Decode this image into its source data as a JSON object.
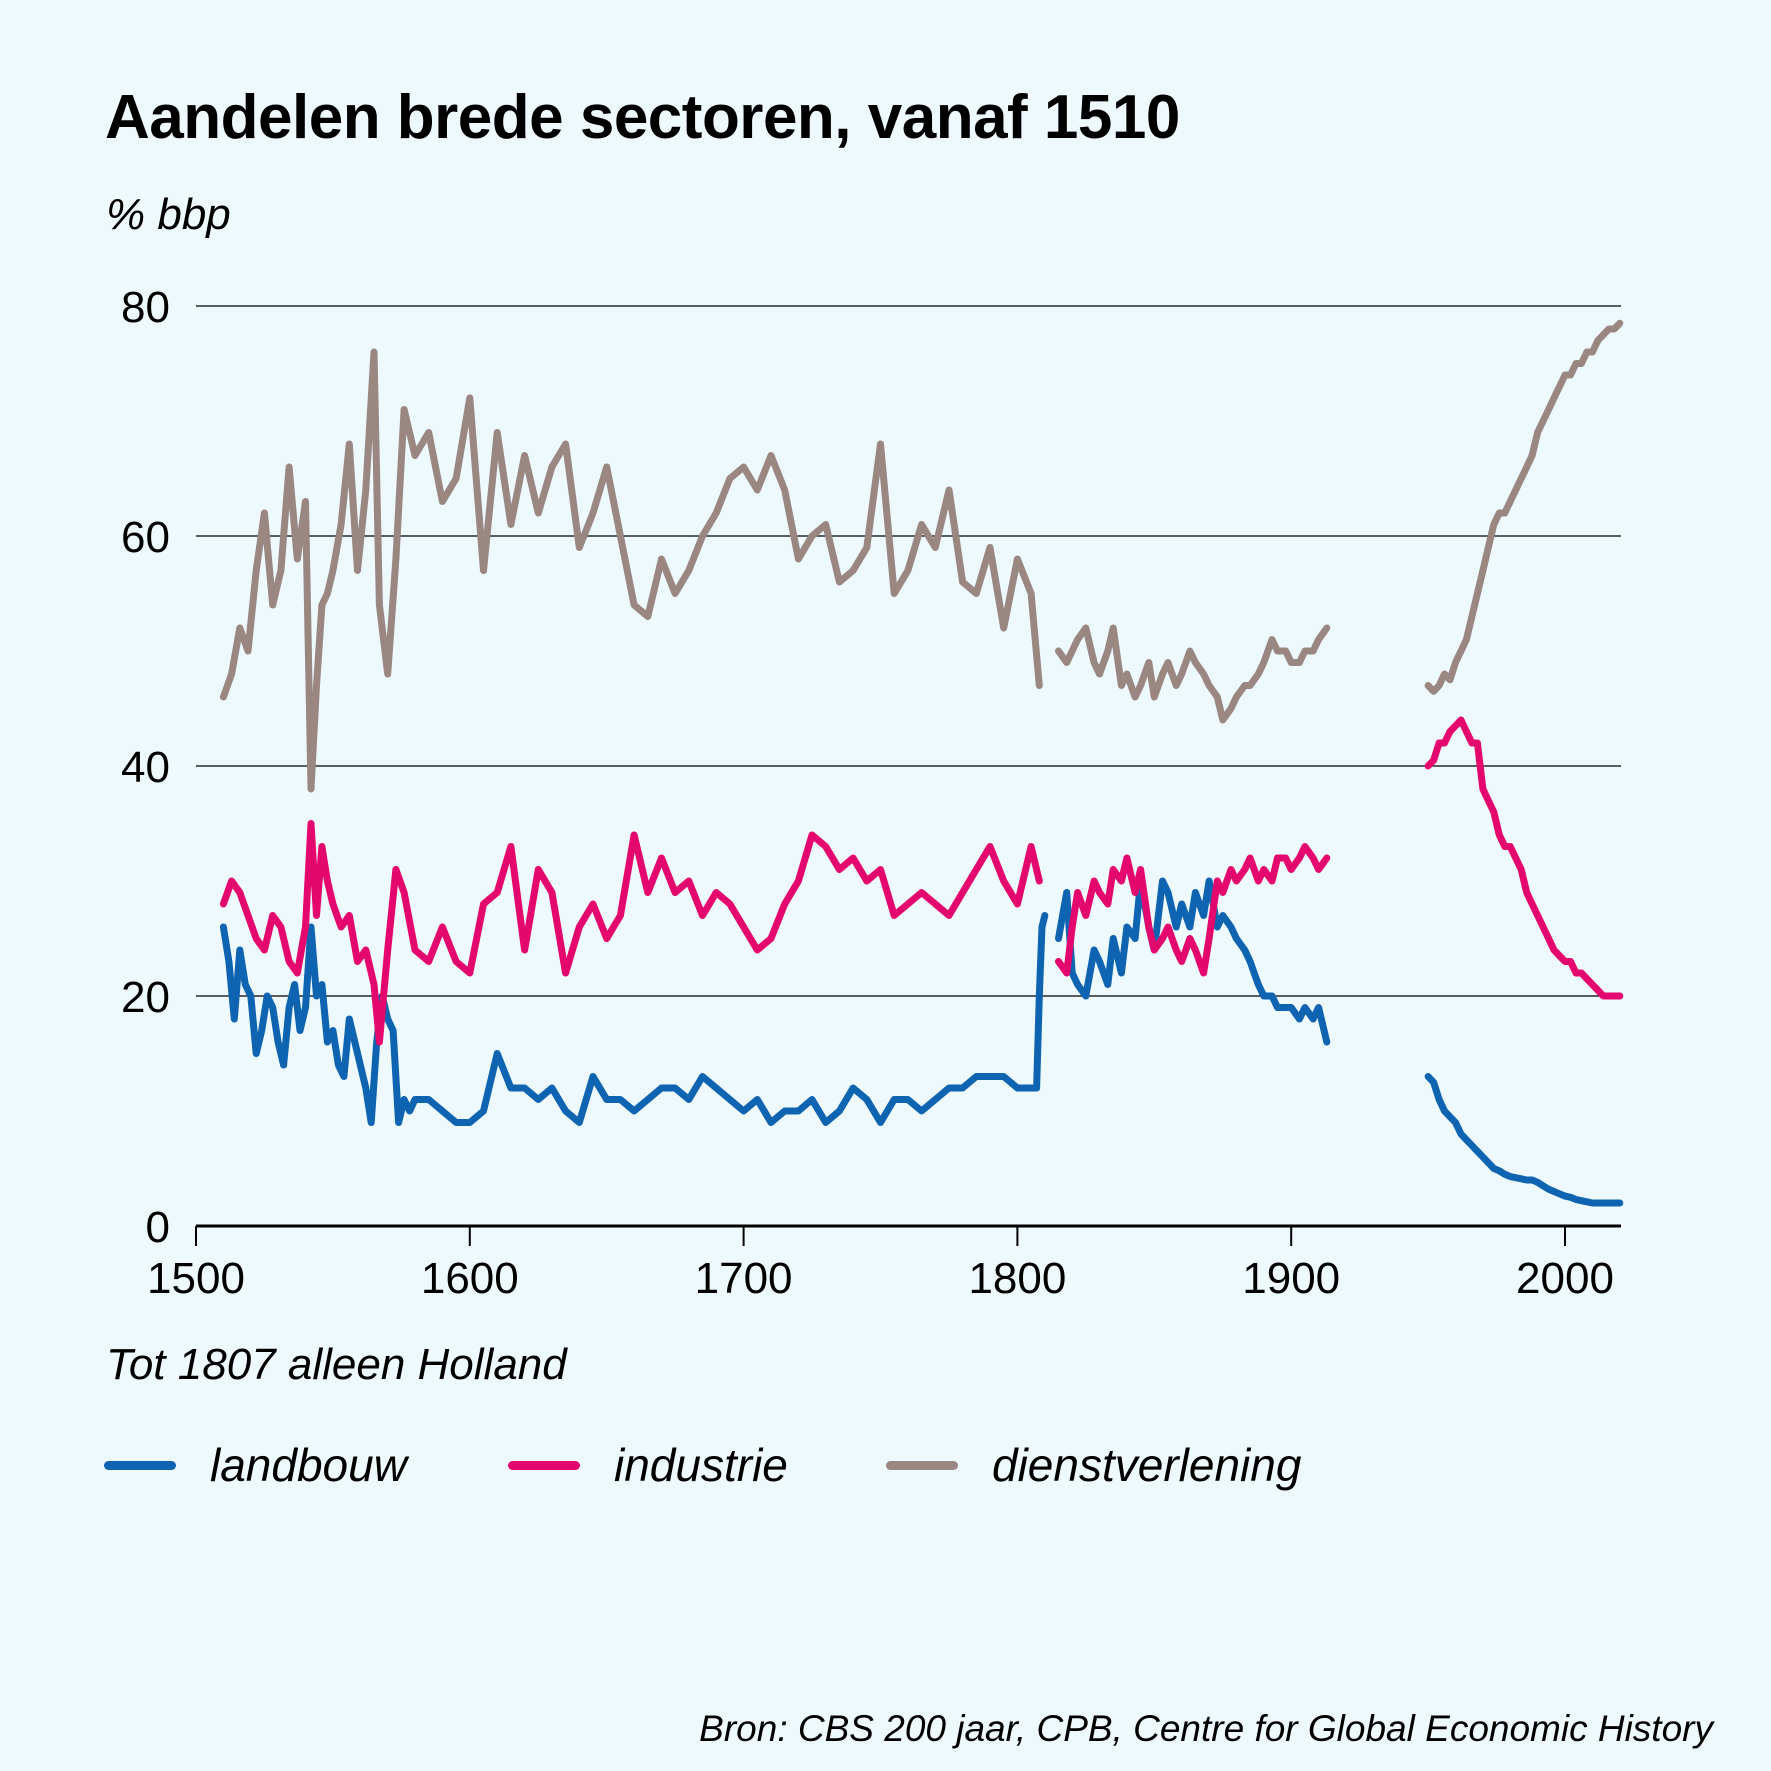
{
  "chart_data": {
    "type": "line",
    "title": "Aandelen brede sectoren, vanaf 1510",
    "ylabel": "% bbp",
    "xlabel": "",
    "note": "Tot 1807 alleen Holland",
    "source": "Bron: CBS 200 jaar, CPB, Centre for Global Economic History",
    "xlim": [
      1500,
      2020
    ],
    "ylim": [
      0,
      80
    ],
    "xticks": [
      1500,
      1600,
      1700,
      1800,
      1900,
      2000
    ],
    "yticks": [
      0,
      20,
      40,
      60,
      80
    ],
    "grid": true,
    "legend_position": "bottom",
    "colors": {
      "landbouw": "#0f64b2",
      "industrie": "#e4076d",
      "dienstverlening": "#9a8781",
      "grid": "#000000",
      "background": "#eef9fe"
    },
    "series": [
      {
        "name": "landbouw",
        "color": "#0f64b2",
        "segments": [
          {
            "x": [
              1510,
              1512,
              1514,
              1516,
              1518,
              1520,
              1522,
              1524,
              1526,
              1528,
              1530,
              1532,
              1534,
              1536,
              1538,
              1540,
              1542,
              1544,
              1546,
              1548,
              1550,
              1552,
              1554,
              1556,
              1558,
              1560,
              1562,
              1564,
              1566,
              1568,
              1570,
              1572,
              1574,
              1576,
              1578,
              1580,
              1585,
              1590,
              1595,
              1600,
              1605,
              1610,
              1615,
              1620,
              1625,
              1630,
              1635,
              1640,
              1645,
              1650,
              1655,
              1660,
              1665,
              1670,
              1675,
              1680,
              1685,
              1690,
              1695,
              1700,
              1705,
              1710,
              1715,
              1720,
              1725,
              1730,
              1735,
              1740,
              1745,
              1750,
              1755,
              1760,
              1765,
              1770,
              1775,
              1780,
              1785,
              1790,
              1795,
              1800,
              1805,
              1807
            ],
            "y": [
              26,
              23,
              18,
              24,
              21,
              20,
              15,
              17,
              20,
              19,
              16,
              14,
              19,
              21,
              17,
              19,
              26,
              20,
              21,
              16,
              17,
              14,
              13,
              18,
              16,
              14,
              12,
              9,
              16,
              20,
              18,
              17,
              9,
              11,
              10,
              11,
              11,
              10,
              9,
              9,
              10,
              15,
              12,
              12,
              11,
              12,
              10,
              9,
              13,
              11,
              11,
              10,
              11,
              12,
              12,
              11,
              13,
              12,
              11,
              10,
              11,
              9,
              10,
              10,
              11,
              9,
              10,
              12,
              11,
              9,
              11,
              11,
              10,
              11,
              12,
              12,
              13,
              13,
              13,
              12,
              12,
              12
            ]
          },
          {
            "x": [
              1807,
              1808,
              1809,
              1810
            ],
            "y": [
              12,
              20,
              26,
              27
            ]
          },
          {
            "x": [
              1815,
              1818,
              1820,
              1822,
              1825,
              1828,
              1830,
              1833,
              1835,
              1838,
              1840,
              1843,
              1845,
              1848,
              1850,
              1853,
              1855,
              1858,
              1860,
              1863,
              1865,
              1868,
              1870,
              1873,
              1875,
              1878,
              1880,
              1883,
              1885,
              1888,
              1890,
              1893,
              1895,
              1898,
              1900,
              1903,
              1905,
              1908,
              1910,
              1913
            ],
            "y": [
              25,
              29,
              22,
              21,
              20,
              24,
              23,
              21,
              25,
              22,
              26,
              25,
              30,
              26,
              24,
              30,
              29,
              26,
              28,
              26,
              29,
              27,
              30,
              26,
              27,
              26,
              25,
              24,
              23,
              21,
              20,
              20,
              19,
              19,
              19,
              18,
              19,
              18,
              19,
              16
            ]
          },
          {
            "x": [
              1950,
              1952,
              1954,
              1956,
              1958,
              1960,
              1962,
              1964,
              1966,
              1968,
              1970,
              1972,
              1974,
              1976,
              1978,
              1980,
              1982,
              1984,
              1986,
              1988,
              1990,
              1992,
              1994,
              1996,
              1998,
              2000,
              2002,
              2004,
              2006,
              2008,
              2010,
              2012,
              2014,
              2016,
              2018,
              2020
            ],
            "y": [
              13,
              12.5,
              11,
              10,
              9.5,
              9,
              8,
              7.5,
              7,
              6.5,
              6,
              5.5,
              5,
              4.8,
              4.5,
              4.3,
              4.2,
              4.1,
              4,
              4,
              3.8,
              3.5,
              3.2,
              3,
              2.8,
              2.6,
              2.5,
              2.3,
              2.2,
              2.1,
              2,
              2,
              2,
              2,
              2,
              2
            ]
          }
        ]
      },
      {
        "name": "industrie",
        "color": "#e4076d",
        "segments": [
          {
            "x": [
              1510,
              1513,
              1516,
              1519,
              1522,
              1525,
              1528,
              1531,
              1534,
              1537,
              1540,
              1542,
              1544,
              1546,
              1548,
              1550,
              1553,
              1556,
              1559,
              1562,
              1565,
              1567,
              1570,
              1573,
              1576,
              1580,
              1585,
              1590,
              1595,
              1600,
              1605,
              1610,
              1615,
              1620,
              1625,
              1630,
              1635,
              1640,
              1645,
              1650,
              1655,
              1660,
              1665,
              1670,
              1675,
              1680,
              1685,
              1690,
              1695,
              1700,
              1705,
              1710,
              1715,
              1720,
              1725,
              1730,
              1735,
              1740,
              1745,
              1750,
              1755,
              1760,
              1765,
              1770,
              1775,
              1780,
              1785,
              1790,
              1795,
              1800,
              1805,
              1808
            ],
            "y": [
              28,
              30,
              29,
              27,
              25,
              24,
              27,
              26,
              23,
              22,
              26,
              35,
              27,
              33,
              30,
              28,
              26,
              27,
              23,
              24,
              21,
              16,
              24,
              31,
              29,
              24,
              23,
              26,
              23,
              22,
              28,
              29,
              33,
              24,
              31,
              29,
              22,
              26,
              28,
              25,
              27,
              34,
              29,
              32,
              29,
              30,
              27,
              29,
              28,
              26,
              24,
              25,
              28,
              30,
              34,
              33,
              31,
              32,
              30,
              31,
              27,
              28,
              29,
              28,
              27,
              29,
              31,
              33,
              30,
              28,
              33,
              30
            ]
          },
          {
            "x": [
              1815,
              1818,
              1820,
              1822,
              1825,
              1828,
              1830,
              1833,
              1835,
              1838,
              1840,
              1843,
              1845,
              1848,
              1850,
              1853,
              1855,
              1858,
              1860,
              1863,
              1865,
              1868,
              1870,
              1873,
              1875,
              1878,
              1880,
              1883,
              1885,
              1888,
              1890,
              1893,
              1895,
              1898,
              1900,
              1903,
              1905,
              1908,
              1910,
              1913
            ],
            "y": [
              23,
              22,
              26,
              29,
              27,
              30,
              29,
              28,
              31,
              30,
              32,
              29,
              31,
              26,
              24,
              25,
              26,
              24,
              23,
              25,
              24,
              22,
              25,
              30,
              29,
              31,
              30,
              31,
              32,
              30,
              31,
              30,
              32,
              32,
              31,
              32,
              33,
              32,
              31,
              32
            ]
          },
          {
            "x": [
              1950,
              1952,
              1954,
              1956,
              1958,
              1960,
              1962,
              1964,
              1966,
              1968,
              1970,
              1972,
              1974,
              1976,
              1978,
              1980,
              1982,
              1984,
              1986,
              1988,
              1990,
              1992,
              1994,
              1996,
              1998,
              2000,
              2002,
              2004,
              2006,
              2008,
              2010,
              2012,
              2014,
              2016,
              2018,
              2020
            ],
            "y": [
              40,
              40.5,
              42,
              42,
              43,
              43.5,
              44,
              43,
              42,
              42,
              38,
              37,
              36,
              34,
              33,
              33,
              32,
              31,
              29,
              28,
              27,
              26,
              25,
              24,
              23.5,
              23,
              23,
              22,
              22,
              21.5,
              21,
              20.5,
              20,
              20,
              20,
              20
            ]
          }
        ]
      },
      {
        "name": "dienstverlening",
        "color": "#9a8781",
        "segments": [
          {
            "x": [
              1510,
              1513,
              1516,
              1519,
              1522,
              1525,
              1528,
              1531,
              1534,
              1537,
              1540,
              1542,
              1544,
              1546,
              1548,
              1550,
              1553,
              1556,
              1559,
              1562,
              1565,
              1567,
              1570,
              1573,
              1576,
              1580,
              1585,
              1590,
              1595,
              1600,
              1605,
              1610,
              1615,
              1620,
              1625,
              1630,
              1635,
              1640,
              1645,
              1650,
              1655,
              1660,
              1665,
              1670,
              1675,
              1680,
              1685,
              1690,
              1695,
              1700,
              1705,
              1710,
              1715,
              1720,
              1725,
              1730,
              1735,
              1740,
              1745,
              1750,
              1755,
              1760,
              1765,
              1770,
              1775,
              1780,
              1785,
              1790,
              1795,
              1800,
              1805,
              1808
            ],
            "y": [
              46,
              48,
              52,
              50,
              57,
              62,
              54,
              57,
              66,
              58,
              63,
              38,
              47,
              54,
              55,
              57,
              61,
              68,
              57,
              64,
              76,
              54,
              48,
              58,
              71,
              67,
              69,
              63,
              65,
              72,
              57,
              69,
              61,
              67,
              62,
              66,
              68,
              59,
              62,
              66,
              60,
              54,
              53,
              58,
              55,
              57,
              60,
              62,
              65,
              66,
              64,
              67,
              64,
              58,
              60,
              61,
              56,
              57,
              59,
              68,
              55,
              57,
              61,
              59,
              64,
              56,
              55,
              59,
              52,
              58,
              55,
              47
            ]
          },
          {
            "x": [
              1815,
              1818,
              1820,
              1822,
              1825,
              1828,
              1830,
              1833,
              1835,
              1838,
              1840,
              1843,
              1845,
              1848,
              1850,
              1853,
              1855,
              1858,
              1860,
              1863,
              1865,
              1868,
              1870,
              1873,
              1875,
              1878,
              1880,
              1883,
              1885,
              1888,
              1890,
              1893,
              1895,
              1898,
              1900,
              1903,
              1905,
              1908,
              1910,
              1913
            ],
            "y": [
              50,
              49,
              50,
              51,
              52,
              49,
              48,
              50,
              52,
              47,
              48,
              46,
              47,
              49,
              46,
              48,
              49,
              47,
              48,
              50,
              49,
              48,
              47,
              46,
              44,
              45,
              46,
              47,
              47,
              48,
              49,
              51,
              50,
              50,
              49,
              49,
              50,
              50,
              51,
              52
            ]
          },
          {
            "x": [
              1950,
              1952,
              1954,
              1956,
              1958,
              1960,
              1962,
              1964,
              1966,
              1968,
              1970,
              1972,
              1974,
              1976,
              1978,
              1980,
              1982,
              1984,
              1986,
              1988,
              1990,
              1992,
              1994,
              1996,
              1998,
              2000,
              2002,
              2004,
              2006,
              2008,
              2010,
              2012,
              2014,
              2016,
              2018,
              2020
            ],
            "y": [
              47,
              46.5,
              47,
              48,
              47.5,
              49,
              50,
              51,
              53,
              55,
              57,
              59,
              61,
              62,
              62,
              63,
              64,
              65,
              66,
              67,
              69,
              70,
              71,
              72,
              73,
              74,
              74,
              75,
              75,
              76,
              76,
              77,
              77.5,
              78,
              78,
              78.5
            ]
          }
        ]
      }
    ]
  }
}
